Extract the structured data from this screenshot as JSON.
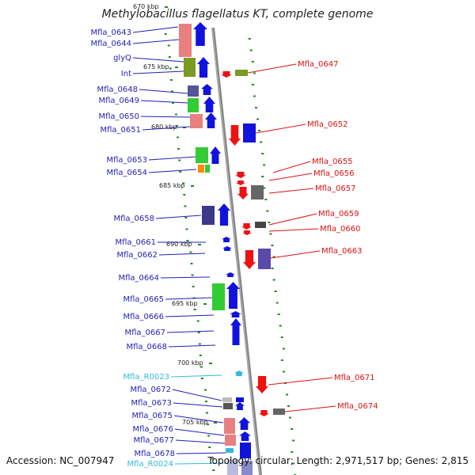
{
  "title": "Methylobacillus flagellatus KT, complete genome",
  "footer": {
    "accession": "Accession: NC_007947",
    "summary": "Topology: circular; Length: 2,971,517 bp; Genes: 2,815"
  },
  "colors": {
    "forward_label": "#1f1fb4",
    "reverse_label": "#dd1111",
    "rna_label": "#33bbdd",
    "backbone": "#888888",
    "ticks": "#228822"
  },
  "kbp_marks": [
    {
      "label": "670 kbp"
    },
    {
      "label": "675 kbp"
    },
    {
      "label": "680 kbp"
    },
    {
      "label": "685 kbp"
    },
    {
      "label": "690 kbp"
    },
    {
      "label": "695 kbp"
    },
    {
      "label": "700 kbp"
    },
    {
      "label": "705 kbp"
    }
  ],
  "forward_genes": [
    "Mfla_0643",
    "Mfla_0644",
    "glyQ",
    "Int",
    "Mfla_0648",
    "Mfla_0649",
    "Mfla_0650",
    "Mfla_0651",
    "Mfla_0653",
    "Mfla_0654",
    "Mfla_0658",
    "Mfla_0661",
    "Mfla_0662",
    "Mfla_0664",
    "Mfla_0665",
    "Mfla_0666",
    "Mfla_0667",
    "Mfla_0668",
    "Mfla_R0023",
    "Mfla_0672",
    "Mfla_0673",
    "Mfla_0675",
    "Mfla_0676",
    "Mfla_0677",
    "Mfla_0678",
    "Mfla_R0024"
  ],
  "reverse_genes": [
    "Mfla_0647",
    "Mfla_0652",
    "Mfla_0655",
    "Mfla_0656",
    "Mfla_0657",
    "Mfla_0659",
    "Mfla_0660",
    "Mfla_0663",
    "Mfla_0671",
    "Mfla_0674"
  ]
}
